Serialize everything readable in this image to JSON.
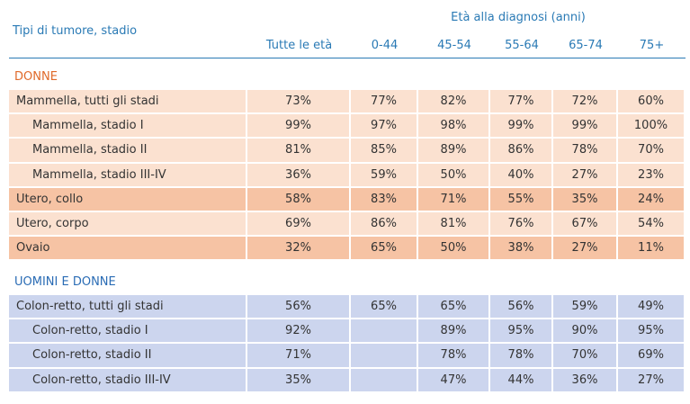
{
  "header": {
    "row_label": "Tipi di tumore, stadio",
    "group_label": "Età alla diagnosi (anni)",
    "columns": [
      "Tutte le età",
      "0-44",
      "45-54",
      "55-64",
      "65-74",
      "75+"
    ]
  },
  "sections": [
    {
      "title": "DONNE",
      "rows": [
        [
          "Mammella, tutti gli stadi",
          "73%",
          "77%",
          "82%",
          "77%",
          "72%",
          "60%"
        ],
        [
          "Mammella, stadio I",
          "99%",
          "97%",
          "98%",
          "99%",
          "99%",
          "100%"
        ],
        [
          "Mammella, stadio II",
          "81%",
          "85%",
          "89%",
          "86%",
          "78%",
          "70%"
        ],
        [
          "Mammella, stadio III-IV",
          "36%",
          "59%",
          "50%",
          "40%",
          "27%",
          "23%"
        ],
        [
          "Utero, collo",
          "58%",
          "83%",
          "71%",
          "55%",
          "35%",
          "24%"
        ],
        [
          "Utero, corpo",
          "69%",
          "86%",
          "81%",
          "76%",
          "67%",
          "54%"
        ],
        [
          "Ovaio",
          "32%",
          "65%",
          "50%",
          "38%",
          "27%",
          "11%"
        ]
      ]
    },
    {
      "title": "UOMINI E DONNE",
      "rows": [
        [
          "Colon-retto, tutti gli stadi",
          "56%",
          "65%",
          "65%",
          "56%",
          "59%",
          "49%"
        ],
        [
          "Colon-retto, stadio I",
          "92%",
          null,
          "89%",
          "95%",
          "90%",
          "95%"
        ],
        [
          "Colon-retto, stadio II",
          "71%",
          null,
          "78%",
          "78%",
          "70%",
          "69%"
        ],
        [
          "Colon-retto, stadio III-IV",
          "35%",
          null,
          "47%",
          "44%",
          "36%",
          "27%"
        ]
      ]
    }
  ]
}
